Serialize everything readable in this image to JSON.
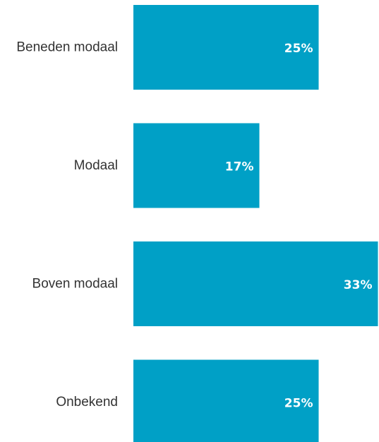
{
  "chart_data": {
    "type": "bar",
    "orientation": "horizontal",
    "categories": [
      "Beneden modaal",
      "Modaal",
      "Boven modaal",
      "Onbekend"
    ],
    "values": [
      25,
      17,
      33,
      25
    ],
    "value_labels": [
      "25%",
      "17%",
      "33%",
      "25%"
    ],
    "unit": "%",
    "grid": false,
    "legend": "none",
    "colors": {
      "bar": "#00A0C6",
      "value_label": "#FFFFFF",
      "category_label": "#333333"
    }
  }
}
